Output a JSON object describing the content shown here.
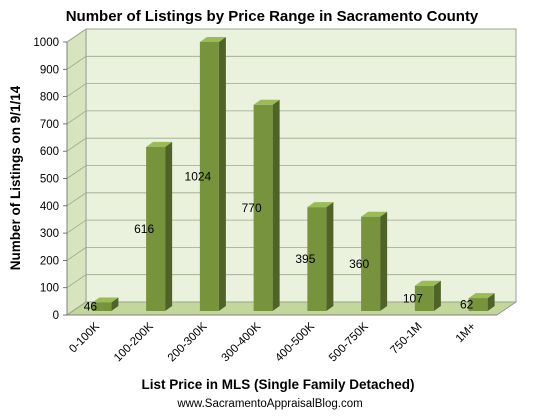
{
  "chart_data": {
    "type": "bar",
    "title": "Number of Listings by Price Range in Sacramento County",
    "xlabel": "List Price in MLS (Single Family Detached)",
    "ylabel": "Number of Listings on 9/1/14",
    "categories": [
      "0-100K",
      "100-200K",
      "200-300K",
      "300-400K",
      "400-500K",
      "500-750K",
      "750-1M",
      "1M+"
    ],
    "values": [
      46,
      616,
      1024,
      770,
      395,
      360,
      107,
      62
    ],
    "data_labels": [
      "46",
      "616",
      "1024",
      "770",
      "395",
      "360",
      "107",
      "62"
    ],
    "ylim": [
      0,
      1000
    ],
    "yticks": [
      0,
      100,
      200,
      300,
      400,
      500,
      600,
      700,
      800,
      900,
      1000
    ],
    "grid": true,
    "legend": "none",
    "style": "3d-column",
    "colors": {
      "bar_front": "#77933c",
      "bar_side": "#4f6228",
      "bar_top": "#9bbb59",
      "plot_back": "#eaf1dd",
      "plot_floor": "#c3d69b",
      "plot_side": "#d7e4bd",
      "gridline": "#9aa88a"
    }
  },
  "footer_text": "www.SacramentoAppraisalBlog.com"
}
